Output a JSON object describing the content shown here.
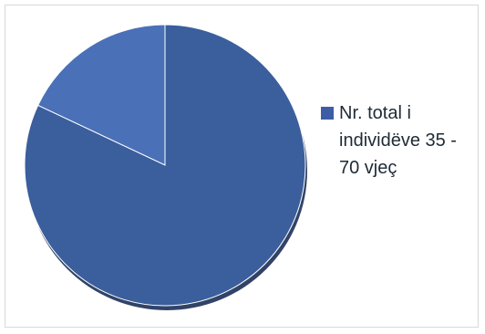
{
  "chart_data": {
    "type": "pie",
    "title": "",
    "categories": [
      "",
      "Nr. total i individëve 35 - 70 vjeç"
    ],
    "values": [
      18,
      82
    ],
    "colors": [
      "#4A70B8",
      "#3B5E9C"
    ],
    "legend": {
      "position": "right",
      "entries": [
        {
          "label": "Nr. total i individëve 35 - 70 vjeç",
          "color": "#3D5EA6"
        }
      ]
    }
  }
}
